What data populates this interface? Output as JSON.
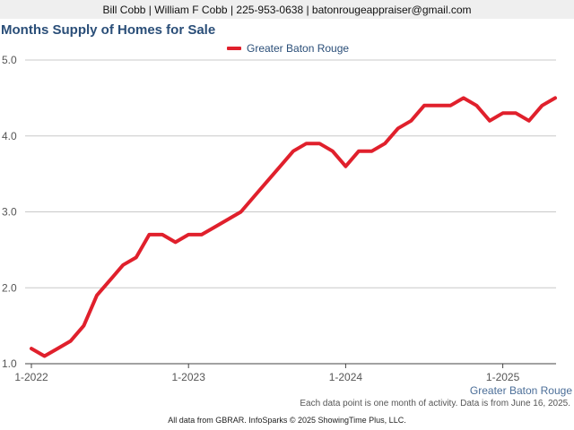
{
  "header": {
    "contact": "Bill Cobb | William F Cobb | 225-953-0638 | batonrougeappraiser@gmail.com"
  },
  "footer": {
    "note": "Each data point is one month of activity. Data is from June 16, 2025.",
    "copyright": "All data from GBRAR. InfoSparks © 2025 ShowingTime Plus, LLC."
  },
  "colors": {
    "series": "#e0202c",
    "title": "#2a4e78",
    "grid": "#c8c8c8",
    "axis_text": "#555555"
  },
  "chart_data": {
    "type": "line",
    "title": "Months Supply of Homes for Sale",
    "xlabel": "Greater Baton Rouge",
    "ylabel": "",
    "ylim": [
      1.0,
      5.0
    ],
    "yticks": [
      "1.0",
      "2.0",
      "3.0",
      "4.0",
      "5.0"
    ],
    "xticks": [
      "1-2022",
      "1-2023",
      "1-2024",
      "1-2025"
    ],
    "grid": true,
    "legend_position": "top-center",
    "x": [
      "2022-01",
      "2022-02",
      "2022-03",
      "2022-04",
      "2022-05",
      "2022-06",
      "2022-07",
      "2022-08",
      "2022-09",
      "2022-10",
      "2022-11",
      "2022-12",
      "2023-01",
      "2023-02",
      "2023-03",
      "2023-04",
      "2023-05",
      "2023-06",
      "2023-07",
      "2023-08",
      "2023-09",
      "2023-10",
      "2023-11",
      "2023-12",
      "2024-01",
      "2024-02",
      "2024-03",
      "2024-04",
      "2024-05",
      "2024-06",
      "2024-07",
      "2024-08",
      "2024-09",
      "2024-10",
      "2024-11",
      "2024-12",
      "2025-01",
      "2025-02",
      "2025-03",
      "2025-04",
      "2025-05"
    ],
    "series": [
      {
        "name": "Greater Baton Rouge",
        "values": [
          1.2,
          1.1,
          1.2,
          1.3,
          1.5,
          1.9,
          2.1,
          2.3,
          2.4,
          2.7,
          2.7,
          2.6,
          2.7,
          2.7,
          2.8,
          2.9,
          3.0,
          3.2,
          3.4,
          3.6,
          3.8,
          3.9,
          3.9,
          3.8,
          3.6,
          3.8,
          3.8,
          3.9,
          4.1,
          4.2,
          4.4,
          4.4,
          4.4,
          4.5,
          4.4,
          4.2,
          4.3,
          4.3,
          4.2,
          4.4,
          4.5
        ]
      }
    ]
  }
}
